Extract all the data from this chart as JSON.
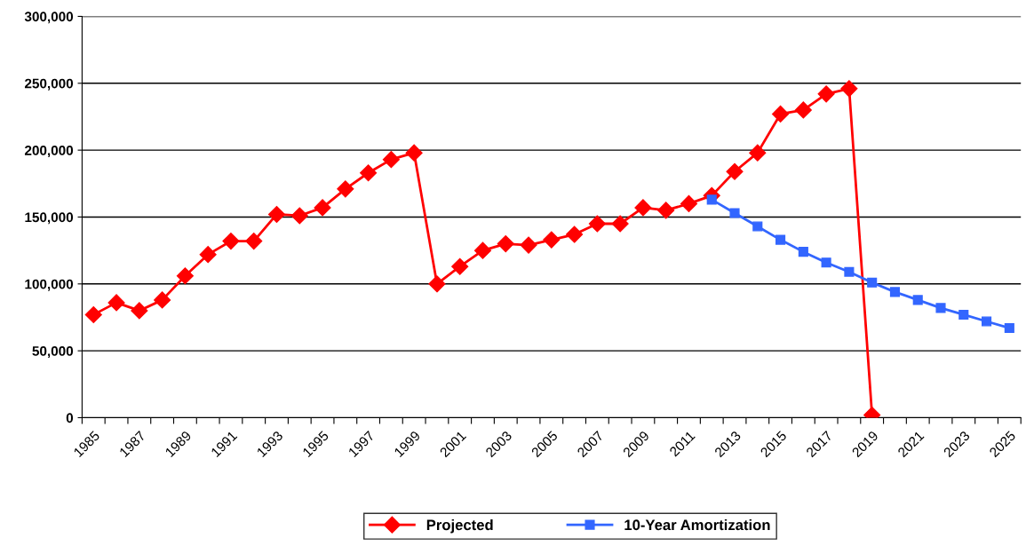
{
  "chart_data": {
    "type": "line",
    "categories": [
      "1985",
      null,
      "1987",
      null,
      "1989",
      null,
      "1991",
      null,
      "1993",
      null,
      "1995",
      null,
      "1997",
      null,
      "1999",
      null,
      "2001",
      null,
      "2003",
      null,
      "2005",
      null,
      "2007",
      null,
      "2009",
      null,
      "2011",
      null,
      "2013",
      null,
      "2015",
      null,
      "2017",
      null,
      "2019",
      null,
      "2021",
      null,
      "2023",
      null,
      "2025"
    ],
    "series": [
      {
        "name": "Projected",
        "color": "#ff0000",
        "marker": "diamond",
        "values": [
          77000,
          86000,
          80000,
          88000,
          106000,
          122000,
          132000,
          132000,
          152000,
          151000,
          157000,
          171000,
          183000,
          193000,
          198000,
          100000,
          113000,
          125000,
          130000,
          129000,
          133000,
          137000,
          145000,
          145000,
          157000,
          155000,
          160000,
          166000,
          184000,
          198000,
          227000,
          230000,
          242000,
          246000,
          2000,
          null,
          null,
          null,
          null,
          null,
          null
        ]
      },
      {
        "name": "10-Year Amortization",
        "color": "#3366ff",
        "marker": "square",
        "values": [
          null,
          null,
          null,
          null,
          null,
          null,
          null,
          null,
          null,
          null,
          null,
          null,
          null,
          null,
          null,
          null,
          null,
          null,
          null,
          null,
          null,
          null,
          null,
          null,
          null,
          null,
          null,
          163000,
          153000,
          143000,
          133000,
          124000,
          116000,
          109000,
          101000,
          94000,
          88000,
          82000,
          77000,
          72000,
          67000
        ]
      }
    ],
    "ylim": [
      0,
      300000
    ],
    "yticks": [
      {
        "value": 0,
        "label": "0"
      },
      {
        "value": 50000,
        "label": "50,000"
      },
      {
        "value": 100000,
        "label": "100,000"
      },
      {
        "value": 150000,
        "label": "150,000"
      },
      {
        "value": 200000,
        "label": "200,000"
      },
      {
        "value": 250000,
        "label": "250,000"
      },
      {
        "value": 300000,
        "label": "300,000"
      }
    ],
    "grid": "y",
    "legend": "bottom",
    "line_style": "solid"
  }
}
